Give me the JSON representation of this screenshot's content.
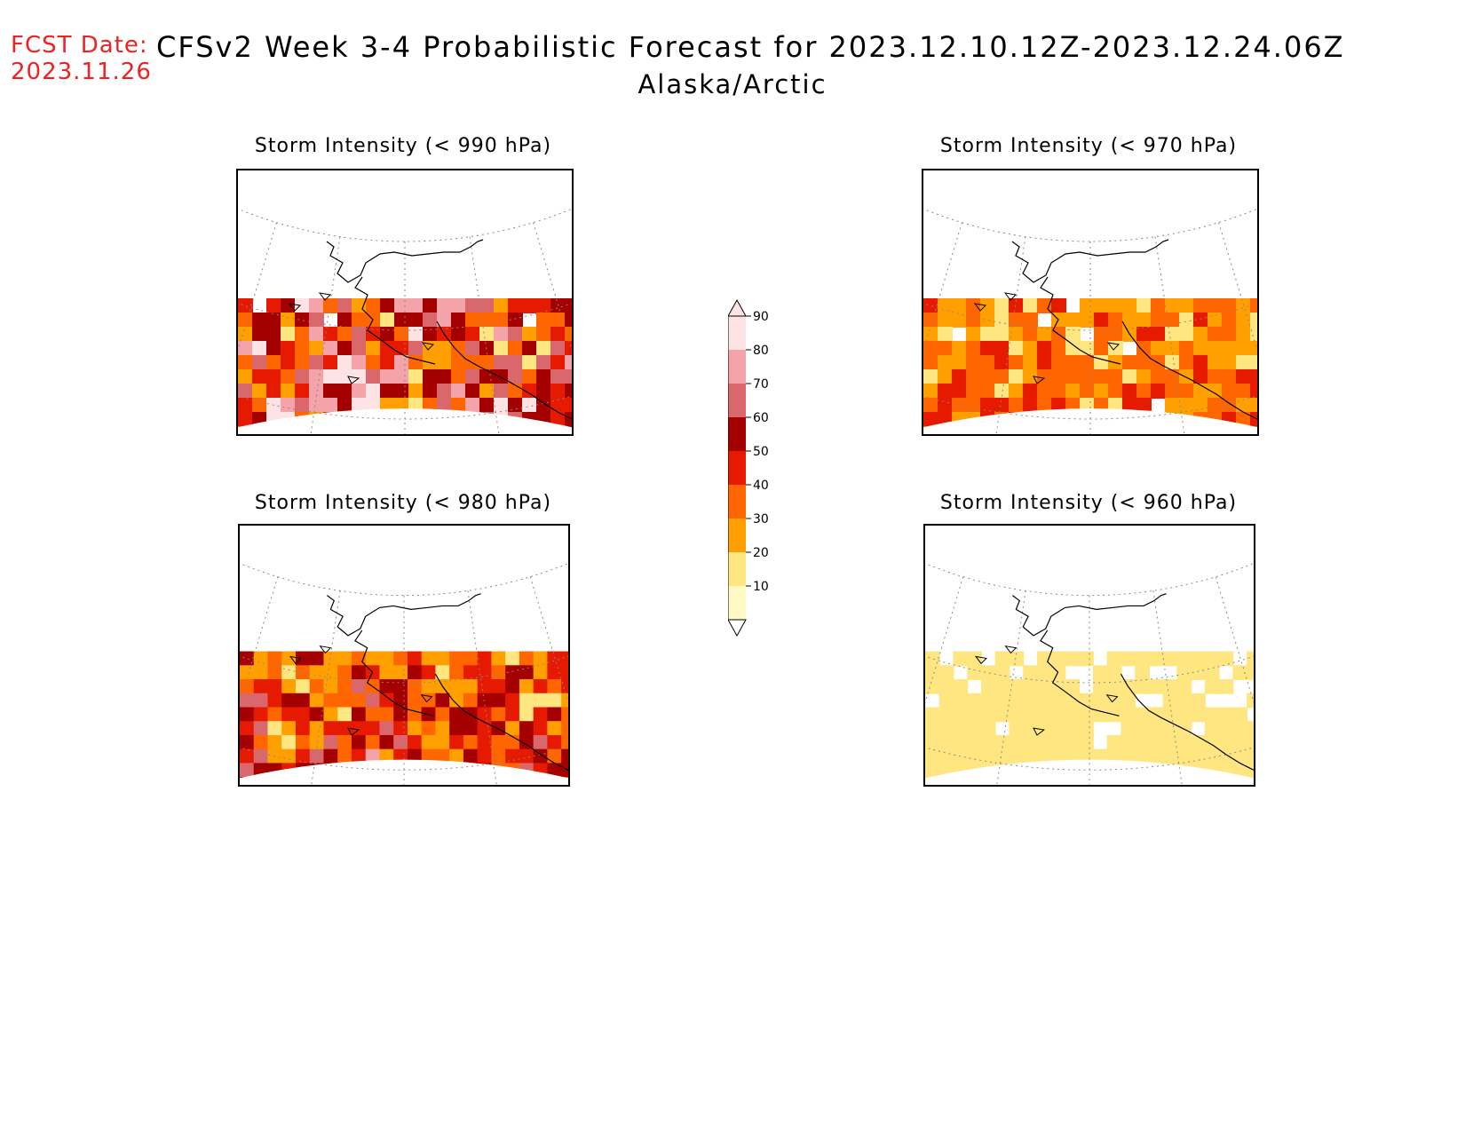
{
  "header": {
    "fcst_label": "FCST Date:",
    "fcst_date": "2023.11.26",
    "title": "CFSv2 Week 3-4 Probabilistic Forecast for 2023.12.10.12Z-2023.12.24.06Z",
    "subtitle": "Alaska/Arctic"
  },
  "panels": [
    {
      "title": "Storm Intensity (< 990 hPa)",
      "level": 0
    },
    {
      "title": "Storm Intensity (< 970 hPa)",
      "level": 2
    },
    {
      "title": "Storm Intensity (< 980 hPa)",
      "level": 1
    },
    {
      "title": "Storm Intensity (< 960 hPa)",
      "level": 3
    }
  ],
  "legend": {
    "ticks": [
      "10",
      "20",
      "30",
      "40",
      "50",
      "60",
      "70",
      "80",
      "90"
    ],
    "colors": [
      "#fff9c4",
      "#ffe680",
      "#ffa000",
      "#ff6600",
      "#e61a00",
      "#a50000",
      "#d9676b",
      "#f4a3a8",
      "#fde3e4"
    ]
  }
}
